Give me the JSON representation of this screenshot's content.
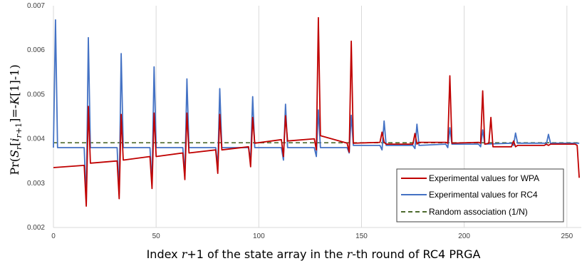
{
  "chart_data": {
    "type": "line",
    "title": "",
    "xlabel": "Index r+1 of the state array in the r-th round of RC4 PRGA",
    "ylabel": "Pr(S_r[i_{r+1}]=-K[1]-1)",
    "xlim": [
      0,
      257
    ],
    "ylim": [
      0.002,
      0.007
    ],
    "x_ticks": [
      0,
      50,
      100,
      150,
      200,
      250
    ],
    "y_ticks": [
      "0.002",
      "0.003",
      "0.004",
      "0.005",
      "0.006",
      "0.007"
    ],
    "grid": "vertical",
    "legend_position": "bottom-right",
    "legend": [
      {
        "name": "Experimental values for WPA",
        "color": "#c00000",
        "style": "solid"
      },
      {
        "name": "Experimental values for RC4",
        "color": "#4472c4",
        "style": "solid"
      },
      {
        "name": "Random association (1/N)",
        "color": "#4e6b2e",
        "style": "dashed"
      }
    ],
    "series": [
      {
        "name": "Experimental values for WPA",
        "color": "#c00000",
        "x": [
          0,
          15,
          16,
          17,
          18,
          31,
          32,
          33,
          34,
          47,
          48,
          49,
          50,
          63,
          64,
          65,
          66,
          79,
          80,
          81,
          82,
          95,
          96,
          97,
          98,
          111,
          112,
          113,
          114,
          127,
          128,
          129,
          130,
          143,
          144,
          145,
          146,
          159,
          160,
          161,
          162,
          175,
          176,
          177,
          178,
          191,
          192,
          193,
          194,
          207,
          208,
          209,
          210,
          212,
          213,
          214,
          223,
          224,
          225,
          226,
          239,
          240,
          241,
          242,
          254,
          255,
          256
        ],
        "y": [
          0.00335,
          0.0034,
          0.00248,
          0.00473,
          0.00345,
          0.0035,
          0.00265,
          0.00455,
          0.00352,
          0.0036,
          0.00288,
          0.00458,
          0.0036,
          0.00368,
          0.00308,
          0.00458,
          0.00368,
          0.00375,
          0.00322,
          0.00455,
          0.00375,
          0.00382,
          0.00337,
          0.00448,
          0.0039,
          0.00398,
          0.0036,
          0.00452,
          0.00395,
          0.004,
          0.00375,
          0.00673,
          0.00407,
          0.0039,
          0.0037,
          0.0062,
          0.0039,
          0.00392,
          0.00415,
          0.00392,
          0.00388,
          0.00388,
          0.00412,
          0.00388,
          0.00392,
          0.00392,
          0.0039,
          0.00542,
          0.0039,
          0.00392,
          0.0039,
          0.00508,
          0.00388,
          0.0039,
          0.00448,
          0.00382,
          0.00382,
          0.00395,
          0.00382,
          0.00385,
          0.00385,
          0.00388,
          0.00385,
          0.00388,
          0.00388,
          0.00385,
          0.00312
        ]
      },
      {
        "name": "Experimental values for RC4",
        "color": "#4472c4",
        "x": [
          0,
          1,
          2,
          15,
          16,
          17,
          18,
          31,
          32,
          33,
          34,
          47,
          48,
          49,
          50,
          63,
          64,
          65,
          66,
          79,
          80,
          81,
          82,
          95,
          96,
          97,
          98,
          111,
          112,
          113,
          114,
          127,
          128,
          129,
          130,
          143,
          144,
          145,
          146,
          159,
          160,
          161,
          162,
          175,
          176,
          177,
          178,
          191,
          192,
          193,
          194,
          207,
          208,
          209,
          210,
          223,
          224,
          225,
          226,
          239,
          240,
          241,
          242,
          256
        ],
        "y": [
          0.0038,
          0.00668,
          0.0038,
          0.0038,
          0.00255,
          0.00628,
          0.0038,
          0.0038,
          0.00278,
          0.00592,
          0.0038,
          0.0038,
          0.00298,
          0.00562,
          0.0038,
          0.0038,
          0.00318,
          0.00535,
          0.0038,
          0.0038,
          0.00338,
          0.00513,
          0.0038,
          0.0038,
          0.00352,
          0.00495,
          0.0038,
          0.0038,
          0.00352,
          0.00478,
          0.0038,
          0.0038,
          0.0036,
          0.00465,
          0.0038,
          0.0038,
          0.00368,
          0.00453,
          0.00385,
          0.00385,
          0.00375,
          0.0044,
          0.00385,
          0.00385,
          0.00378,
          0.00433,
          0.00385,
          0.00388,
          0.0038,
          0.00425,
          0.00388,
          0.00388,
          0.00382,
          0.0042,
          0.00388,
          0.0039,
          0.00385,
          0.00413,
          0.0039,
          0.0039,
          0.00388,
          0.0041,
          0.0039,
          0.0039
        ]
      },
      {
        "name": "Random association (1/N)",
        "color": "#4e6b2e",
        "x": [
          0,
          256
        ],
        "y": [
          0.00391,
          0.00391
        ]
      }
    ]
  }
}
